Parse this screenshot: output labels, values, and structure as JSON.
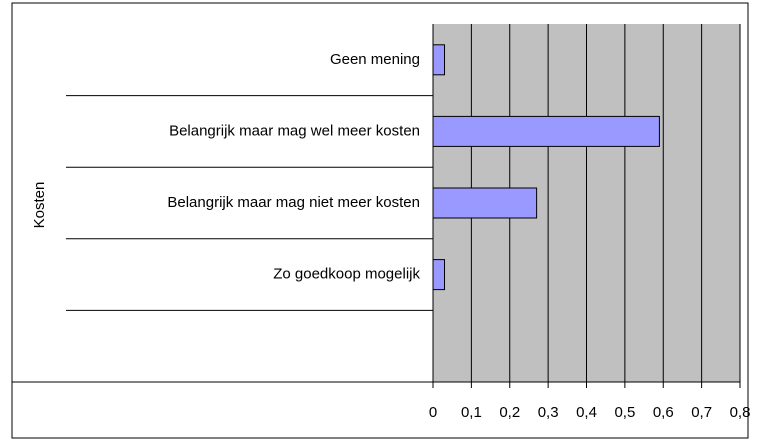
{
  "chart_data": {
    "type": "bar",
    "orientation": "horizontal",
    "y_label": "Kosten",
    "categories": [
      "Geen mening",
      "Belangrijk maar mag wel meer kosten",
      "Belangrijk maar mag niet meer kosten",
      "Zo goedkoop mogelijk",
      null
    ],
    "values": [
      0.03,
      0.59,
      0.27,
      0.03,
      null
    ],
    "color": "#9999ff",
    "xlim": [
      0,
      0.8
    ],
    "xticks": [
      0,
      {
        "value": 0.1,
        "label": "0,1"
      },
      {
        "value": 0.2,
        "label": "0,2"
      },
      {
        "value": 0.3,
        "label": "0,3"
      },
      {
        "value": 0.4,
        "label": "0,4"
      },
      {
        "value": 0.5,
        "label": "0,5"
      },
      {
        "value": 0.6,
        "label": "0,6"
      },
      {
        "value": 0.7,
        "label": "0,7"
      },
      {
        "value": 0.8,
        "label": "0,8"
      }
    ],
    "grid": true
  }
}
